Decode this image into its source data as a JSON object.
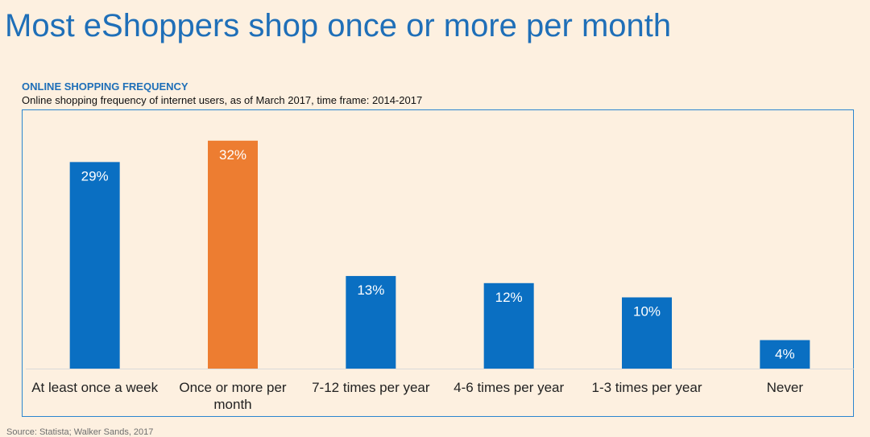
{
  "page_title": "Most eShoppers shop once or more per month",
  "source": "Source: Statista; Walker Sands, 2017",
  "chart_data": {
    "type": "bar",
    "title": "ONLINE SHOPPING FREQUENCY",
    "subtitle": "Online shopping frequency of internet users, as of March 2017, time frame: 2014-2017",
    "categories": [
      "At least once a week",
      "Once or more per month",
      "7-12 times per year",
      "4-6 times per year",
      "1-3 times per year",
      "Never"
    ],
    "values": [
      29,
      32,
      13,
      12,
      10,
      4
    ],
    "value_labels": [
      "29%",
      "32%",
      "13%",
      "12%",
      "10%",
      "4%"
    ],
    "unit": "%",
    "highlight_index": 1,
    "colors": {
      "bar": "#0a6fc2",
      "highlight": "#ed7d31",
      "value_label": "#ffffff",
      "category_label": "#222222",
      "baseline": "#d9d9d9"
    },
    "grid": false,
    "legend": "none"
  }
}
